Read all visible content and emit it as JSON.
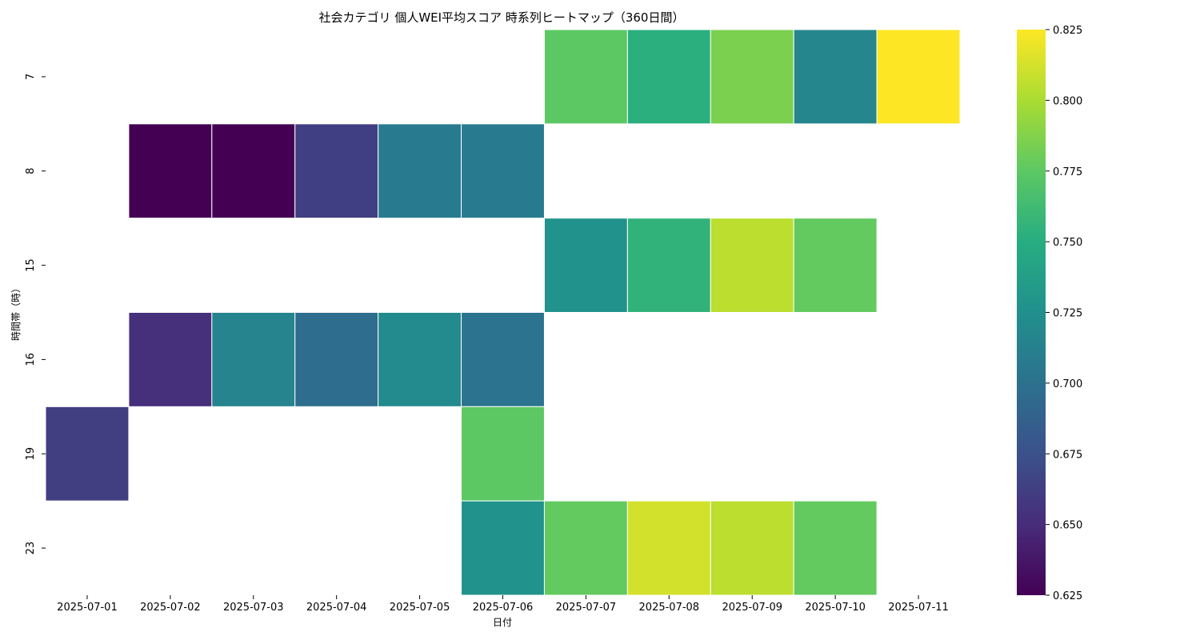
{
  "chart_data": {
    "type": "heatmap",
    "title": "社会カテゴリ 個人WEI平均スコア 時系列ヒートマップ（360日間）",
    "xlabel": "日付",
    "ylabel": "時間帯（時）",
    "x_categories": [
      "2025-07-01",
      "2025-07-02",
      "2025-07-03",
      "2025-07-04",
      "2025-07-05",
      "2025-07-06",
      "2025-07-07",
      "2025-07-08",
      "2025-07-09",
      "2025-07-10",
      "2025-07-11"
    ],
    "y_categories": [
      "7",
      "8",
      "15",
      "16",
      "19",
      "23"
    ],
    "values": [
      [
        null,
        null,
        null,
        null,
        null,
        null,
        0.775,
        0.752,
        0.785,
        0.717,
        0.825
      ],
      [
        null,
        0.625,
        0.625,
        0.663,
        0.708,
        0.708,
        null,
        null,
        null,
        null,
        null
      ],
      [
        null,
        null,
        null,
        null,
        null,
        null,
        0.727,
        0.755,
        0.805,
        0.777,
        null
      ],
      [
        null,
        0.653,
        0.715,
        0.697,
        0.72,
        0.702,
        null,
        null,
        null,
        null,
        null
      ],
      [
        0.662,
        null,
        null,
        null,
        null,
        0.775,
        null,
        null,
        null,
        null,
        null
      ],
      [
        null,
        null,
        null,
        null,
        null,
        0.727,
        0.777,
        0.812,
        0.805,
        0.777,
        null
      ]
    ],
    "colormap": "viridis",
    "colorbar": {
      "min": 0.625,
      "max": 0.825,
      "ticks": [
        "0.625",
        "0.650",
        "0.675",
        "0.700",
        "0.725",
        "0.750",
        "0.775",
        "0.800",
        "0.825"
      ]
    }
  }
}
